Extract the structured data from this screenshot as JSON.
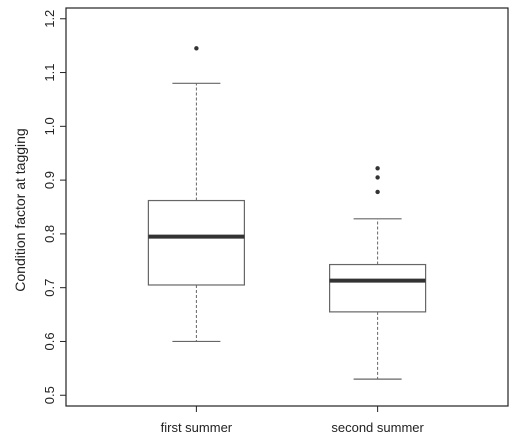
{
  "chart_data": {
    "type": "box",
    "title": "",
    "xlabel": "",
    "ylabel": "Condition factor at tagging",
    "ylim": [
      0.48,
      1.22
    ],
    "yticks": [
      "0.5",
      "0.6",
      "0.7",
      "0.8",
      "0.9",
      "1.0",
      "1.1",
      "1.2"
    ],
    "grid": false,
    "categories": [
      "first summer",
      "second summer"
    ],
    "boxes": [
      {
        "category": "first summer",
        "whisker_low": 0.6,
        "q1": 0.705,
        "median": 0.795,
        "q3": 0.862,
        "whisker_high": 1.08,
        "outliers": [
          1.145
        ]
      },
      {
        "category": "second summer",
        "whisker_low": 0.53,
        "q1": 0.655,
        "median": 0.713,
        "q3": 0.743,
        "whisker_high": 0.828,
        "outliers": [
          0.878,
          0.905,
          0.922
        ]
      }
    ],
    "colors": {
      "box_line": "#666666",
      "median": "#333333",
      "axis": "#222222"
    }
  }
}
